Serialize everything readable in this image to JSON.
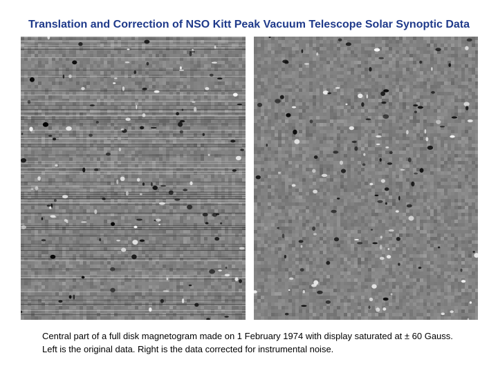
{
  "slide": {
    "title": "Translation and Correction of NSO Kitt Peak Vacuum Telescope Solar Synoptic Data",
    "caption": "Central part of a full disk magnetogram made on 1 February 1974 with display saturated at ± 60 Gauss. Left is the original data. Right is the data corrected for instrumental noise."
  },
  "images": {
    "left": {
      "description_name": "original-magnetogram",
      "streaked": true
    },
    "right": {
      "description_name": "corrected-magnetogram",
      "streaked": false
    }
  }
}
